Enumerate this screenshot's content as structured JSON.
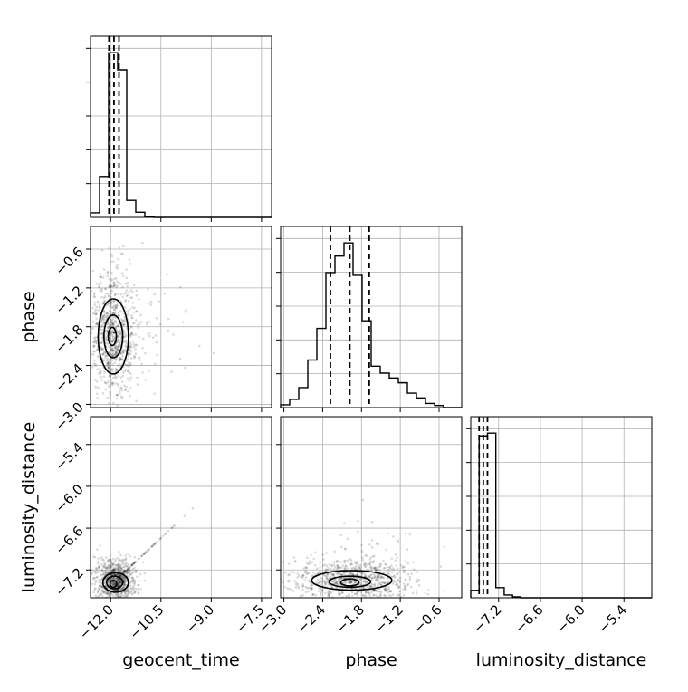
{
  "chart_data": {
    "type": "corner",
    "parameters": [
      "geocent_time",
      "phase",
      "luminosity_distance"
    ],
    "axes": {
      "geocent_time": {
        "label": "geocent_time",
        "range": [
          -12.6,
          -7.2
        ],
        "ticks": [
          -12.0,
          -10.5,
          -9.0,
          -7.5
        ],
        "tick_labels": [
          "−12.0",
          "−10.5",
          "−9.0",
          "−7.5"
        ]
      },
      "phase": {
        "label": "phase",
        "range": [
          -3.05,
          -0.25
        ],
        "ticks": [
          -3.0,
          -2.4,
          -1.8,
          -1.2,
          -0.6
        ],
        "tick_labels": [
          "−3.0",
          "−2.4",
          "−1.8",
          "−1.2",
          "−0.6"
        ]
      },
      "luminosity_distance": {
        "label": "luminosity_distance",
        "range": [
          -7.6,
          -5.0
        ],
        "ticks": [
          -7.2,
          -6.6,
          -6.0,
          -5.4
        ],
        "tick_labels": [
          "−7.2",
          "−6.6",
          "−6.0",
          "−5.4"
        ]
      }
    },
    "histograms": [
      {
        "parameter": "geocent_time",
        "bin_edges": [
          -12.6,
          -12.33,
          -12.06,
          -11.79,
          -11.52,
          -11.25,
          -10.98,
          -10.71
        ],
        "counts": [
          0.4,
          3.6,
          14.5,
          13.0,
          1.5,
          0.45,
          0.1
        ],
        "quantiles": [
          -12.05,
          -11.9,
          -11.75
        ]
      },
      {
        "parameter": "phase",
        "bin_edges": [
          -3.05,
          -2.91,
          -2.77,
          -2.63,
          -2.49,
          -2.35,
          -2.21,
          -2.07,
          -1.93,
          -1.79,
          -1.65,
          -1.51,
          -1.37,
          -1.23,
          -1.09,
          -0.95,
          -0.81,
          -0.67,
          -0.53
        ],
        "counts": [
          0.4,
          1.2,
          2.9,
          6.9,
          11.5,
          19.6,
          22.0,
          23.9,
          19.2,
          12.6,
          6.0,
          5.0,
          4.3,
          3.6,
          2.1,
          1.4,
          0.6,
          0.3
        ],
        "quantiles": [
          -2.28,
          -1.98,
          -1.68
        ]
      },
      {
        "parameter": "luminosity_distance",
        "bin_edges": [
          -7.6,
          -7.48,
          -7.36,
          -7.24,
          -7.12,
          -7.0,
          -6.88
        ],
        "counts": [
          0.8,
          17.5,
          17.8,
          1.1,
          0.3,
          0.1
        ],
        "quantiles": [
          -7.48,
          -7.42,
          -7.36
        ]
      }
    ],
    "scatter_panels": [
      {
        "x": "geocent_time",
        "y": "phase",
        "cloud_center": [
          -11.95,
          -1.95
        ],
        "contours": [
          {
            "level": "outer",
            "center": [
              -11.92,
              -1.95
            ],
            "rx": 0.45,
            "ry": 0.58
          },
          {
            "level": "middle",
            "center": [
              -11.92,
              -1.95
            ],
            "rx": 0.28,
            "ry": 0.33
          },
          {
            "level": "inner",
            "center": [
              -11.95,
              -1.95
            ],
            "rx": 0.12,
            "ry": 0.14
          }
        ]
      },
      {
        "x": "geocent_time",
        "y": "luminosity_distance",
        "cloud_center": [
          -11.85,
          -7.35
        ],
        "contours": [
          {
            "level": "outer",
            "center": [
              -11.85,
              -7.38
            ],
            "rx": 0.38,
            "ry": 0.14
          },
          {
            "level": "middle",
            "center": [
              -11.88,
              -7.38
            ],
            "rx": 0.24,
            "ry": 0.09
          },
          {
            "level": "inner",
            "center": [
              -11.92,
              -7.4
            ],
            "rx": 0.1,
            "ry": 0.05
          }
        ]
      },
      {
        "x": "phase",
        "y": "luminosity_distance",
        "cloud_center": [
          -1.95,
          -7.35
        ],
        "contours": [
          {
            "level": "outer",
            "center": [
              -1.95,
              -7.35
            ],
            "rx": 0.62,
            "ry": 0.14
          },
          {
            "level": "middle",
            "center": [
              -1.98,
              -7.37
            ],
            "rx": 0.32,
            "ry": 0.08
          },
          {
            "level": "inner",
            "center": [
              -1.98,
              -7.38
            ],
            "rx": 0.14,
            "ry": 0.05
          }
        ]
      }
    ],
    "grid": true,
    "legend": false
  }
}
